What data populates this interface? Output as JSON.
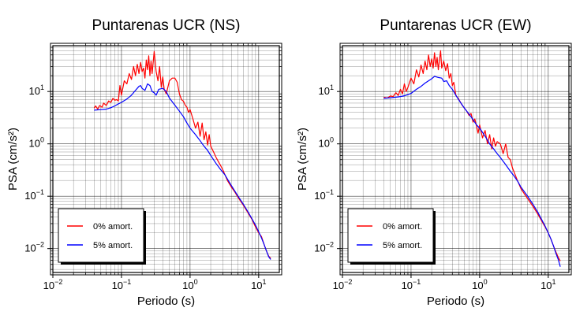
{
  "figure": {
    "background": "#ffffff"
  },
  "chart_data": [
    {
      "type": "line",
      "title": "Puntarenas UCR (NS)",
      "xlabel": "Periodo (s)",
      "ylabel": "PSA (cm/s²)",
      "xscale": "log",
      "yscale": "log",
      "xlim": [
        0.01,
        20
      ],
      "ylim": [
        0.0035,
        75
      ],
      "grid": true,
      "legend_position": "lower-left",
      "x_ticks": [
        {
          "value": 0.01,
          "base": "10",
          "exp": "−2"
        },
        {
          "value": 0.1,
          "base": "10",
          "exp": "−1"
        },
        {
          "value": 1,
          "base": "10",
          "exp": "0"
        },
        {
          "value": 10,
          "base": "10",
          "exp": "1"
        }
      ],
      "y_ticks": [
        {
          "value": 0.01,
          "base": "10",
          "exp": "−2"
        },
        {
          "value": 0.1,
          "base": "10",
          "exp": "−1"
        },
        {
          "value": 1,
          "base": "10",
          "exp": "0"
        },
        {
          "value": 10,
          "base": "10",
          "exp": "1"
        }
      ],
      "series": [
        {
          "name": "0% amort.",
          "color": "#ff0000",
          "points": [
            [
              0.04,
              4.8
            ],
            [
              0.042,
              5.3
            ],
            [
              0.045,
              4.6
            ],
            [
              0.048,
              5.4
            ],
            [
              0.052,
              5.0
            ],
            [
              0.055,
              6.0
            ],
            [
              0.06,
              5.4
            ],
            [
              0.065,
              6.6
            ],
            [
              0.07,
              6.2
            ],
            [
              0.075,
              7.4
            ],
            [
              0.08,
              6.8
            ],
            [
              0.085,
              7.0
            ],
            [
              0.09,
              6.6
            ],
            [
              0.095,
              13
            ],
            [
              0.1,
              8.5
            ],
            [
              0.11,
              16
            ],
            [
              0.12,
              14
            ],
            [
              0.13,
              22
            ],
            [
              0.14,
              17
            ],
            [
              0.15,
              30
            ],
            [
              0.16,
              20
            ],
            [
              0.17,
              33
            ],
            [
              0.18,
              22
            ],
            [
              0.19,
              36
            ],
            [
              0.2,
              24
            ],
            [
              0.21,
              28
            ],
            [
              0.22,
              18
            ],
            [
              0.23,
              40
            ],
            [
              0.24,
              26
            ],
            [
              0.25,
              48
            ],
            [
              0.26,
              20
            ],
            [
              0.27,
              38
            ],
            [
              0.28,
              22
            ],
            [
              0.3,
              58
            ],
            [
              0.32,
              24
            ],
            [
              0.34,
              16
            ],
            [
              0.36,
              30
            ],
            [
              0.38,
              12
            ],
            [
              0.4,
              19
            ],
            [
              0.42,
              11
            ],
            [
              0.45,
              9
            ],
            [
              0.5,
              16
            ],
            [
              0.55,
              18
            ],
            [
              0.6,
              18
            ],
            [
              0.65,
              15
            ],
            [
              0.7,
              9
            ],
            [
              0.75,
              7
            ],
            [
              0.8,
              6.5
            ],
            [
              0.85,
              5.5
            ],
            [
              0.9,
              5.0
            ],
            [
              0.95,
              4.0
            ],
            [
              1.0,
              4.5
            ],
            [
              1.1,
              3.0
            ],
            [
              1.2,
              2.0
            ],
            [
              1.3,
              2.6
            ],
            [
              1.4,
              1.4
            ],
            [
              1.5,
              2.5
            ],
            [
              1.6,
              1.2
            ],
            [
              1.7,
              1.7
            ],
            [
              1.8,
              0.95
            ],
            [
              1.9,
              1.5
            ],
            [
              2.0,
              0.9
            ],
            [
              2.2,
              0.7
            ],
            [
              2.4,
              0.55
            ],
            [
              2.6,
              0.45
            ],
            [
              2.8,
              0.38
            ],
            [
              3.0,
              0.32
            ],
            [
              3.5,
              0.2
            ],
            [
              4.0,
              0.15
            ],
            [
              4.5,
              0.12
            ],
            [
              5.0,
              0.095
            ],
            [
              6.0,
              0.067
            ],
            [
              7.0,
              0.048
            ],
            [
              8.0,
              0.036
            ],
            [
              9.0,
              0.026
            ],
            [
              10.0,
              0.02
            ],
            [
              11.0,
              0.017
            ],
            [
              12.0,
              0.012
            ],
            [
              13.0,
              0.009
            ],
            [
              14.0,
              0.0072
            ],
            [
              15.0,
              0.0065
            ]
          ]
        },
        {
          "name": "5% amort.",
          "color": "#0000ff",
          "points": [
            [
              0.04,
              4.4
            ],
            [
              0.05,
              4.5
            ],
            [
              0.06,
              4.6
            ],
            [
              0.07,
              4.9
            ],
            [
              0.08,
              5.3
            ],
            [
              0.09,
              5.8
            ],
            [
              0.1,
              6.2
            ],
            [
              0.12,
              7.2
            ],
            [
              0.14,
              8.5
            ],
            [
              0.16,
              10.5
            ],
            [
              0.18,
              12.5
            ],
            [
              0.19,
              13
            ],
            [
              0.2,
              11.5
            ],
            [
              0.22,
              10.5
            ],
            [
              0.24,
              14
            ],
            [
              0.26,
              13
            ],
            [
              0.28,
              10
            ],
            [
              0.3,
              9.5
            ],
            [
              0.32,
              8.5
            ],
            [
              0.35,
              11
            ],
            [
              0.4,
              11.5
            ],
            [
              0.45,
              10
            ],
            [
              0.5,
              7.5
            ],
            [
              0.6,
              5.5
            ],
            [
              0.7,
              4.2
            ],
            [
              0.8,
              3.3
            ],
            [
              0.9,
              2.5
            ],
            [
              1.0,
              2.0
            ],
            [
              1.2,
              1.5
            ],
            [
              1.4,
              1.15
            ],
            [
              1.6,
              0.9
            ],
            [
              1.8,
              0.75
            ],
            [
              2.0,
              0.6
            ],
            [
              2.4,
              0.42
            ],
            [
              2.8,
              0.32
            ],
            [
              3.2,
              0.26
            ],
            [
              3.6,
              0.2
            ],
            [
              4.0,
              0.16
            ],
            [
              5.0,
              0.1
            ],
            [
              6.0,
              0.07
            ],
            [
              7.0,
              0.05
            ],
            [
              8.0,
              0.037
            ],
            [
              9.0,
              0.028
            ],
            [
              10.0,
              0.021
            ],
            [
              11.0,
              0.016
            ],
            [
              12.0,
              0.012
            ],
            [
              13.0,
              0.009
            ],
            [
              14.0,
              0.007
            ],
            [
              15.0,
              0.0062
            ]
          ]
        }
      ]
    },
    {
      "type": "line",
      "title": "Puntarenas UCR (EW)",
      "xlabel": "Periodo (s)",
      "ylabel": "PSA (cm/s²)",
      "xscale": "log",
      "yscale": "log",
      "xlim": [
        0.01,
        20
      ],
      "ylim": [
        0.0035,
        75
      ],
      "grid": true,
      "legend_position": "lower-left",
      "x_ticks": [
        {
          "value": 0.01,
          "base": "10",
          "exp": "−2"
        },
        {
          "value": 0.1,
          "base": "10",
          "exp": "−1"
        },
        {
          "value": 1,
          "base": "10",
          "exp": "0"
        },
        {
          "value": 10,
          "base": "10",
          "exp": "1"
        }
      ],
      "y_ticks": [
        {
          "value": 0.01,
          "base": "10",
          "exp": "−2"
        },
        {
          "value": 0.1,
          "base": "10",
          "exp": "−1"
        },
        {
          "value": 1,
          "base": "10",
          "exp": "0"
        },
        {
          "value": 10,
          "base": "10",
          "exp": "1"
        }
      ],
      "series": [
        {
          "name": "0% amort.",
          "color": "#ff0000",
          "points": [
            [
              0.04,
              7.8
            ],
            [
              0.045,
              7.5
            ],
            [
              0.05,
              8.2
            ],
            [
              0.055,
              8.0
            ],
            [
              0.06,
              9.5
            ],
            [
              0.065,
              8.4
            ],
            [
              0.07,
              11
            ],
            [
              0.075,
              9.0
            ],
            [
              0.08,
              14
            ],
            [
              0.085,
              10
            ],
            [
              0.09,
              12
            ],
            [
              0.1,
              18
            ],
            [
              0.11,
              14
            ],
            [
              0.12,
              26
            ],
            [
              0.13,
              19
            ],
            [
              0.14,
              32
            ],
            [
              0.15,
              22
            ],
            [
              0.16,
              38
            ],
            [
              0.17,
              26
            ],
            [
              0.18,
              50
            ],
            [
              0.19,
              30
            ],
            [
              0.2,
              42
            ],
            [
              0.21,
              28
            ],
            [
              0.22,
              55
            ],
            [
              0.23,
              30
            ],
            [
              0.24,
              45
            ],
            [
              0.25,
              26
            ],
            [
              0.27,
              60
            ],
            [
              0.28,
              28
            ],
            [
              0.3,
              38
            ],
            [
              0.32,
              25
            ],
            [
              0.34,
              34
            ],
            [
              0.36,
              18
            ],
            [
              0.38,
              22
            ],
            [
              0.4,
              13
            ],
            [
              0.42,
              15
            ],
            [
              0.45,
              8.5
            ],
            [
              0.5,
              7.0
            ],
            [
              0.55,
              5.6
            ],
            [
              0.6,
              4.8
            ],
            [
              0.65,
              4.2
            ],
            [
              0.7,
              3.5
            ],
            [
              0.75,
              3.8
            ],
            [
              0.8,
              2.6
            ],
            [
              0.85,
              3.0
            ],
            [
              0.9,
              2.2
            ],
            [
              0.95,
              1.6
            ],
            [
              1.0,
              2.3
            ],
            [
              1.1,
              1.3
            ],
            [
              1.2,
              1.8
            ],
            [
              1.3,
              1.0
            ],
            [
              1.4,
              1.5
            ],
            [
              1.5,
              0.8
            ],
            [
              1.6,
              1.3
            ],
            [
              1.7,
              0.9
            ],
            [
              1.8,
              1.1
            ],
            [
              2.0,
              1.0
            ],
            [
              2.2,
              0.65
            ],
            [
              2.4,
              1.0
            ],
            [
              2.6,
              0.55
            ],
            [
              2.8,
              0.5
            ],
            [
              3.0,
              0.35
            ],
            [
              3.5,
              0.21
            ],
            [
              4.0,
              0.14
            ],
            [
              4.5,
              0.11
            ],
            [
              5.0,
              0.09
            ],
            [
              6.0,
              0.064
            ],
            [
              7.0,
              0.046
            ],
            [
              8.0,
              0.034
            ],
            [
              9.0,
              0.026
            ],
            [
              10.0,
              0.02
            ],
            [
              11.0,
              0.015
            ],
            [
              12.0,
              0.011
            ],
            [
              13.0,
              0.0085
            ],
            [
              14.0,
              0.0068
            ],
            [
              15.0,
              0.0058
            ]
          ]
        },
        {
          "name": "5% amort.",
          "color": "#0000ff",
          "points": [
            [
              0.04,
              7.4
            ],
            [
              0.05,
              7.6
            ],
            [
              0.06,
              7.8
            ],
            [
              0.07,
              8.0
            ],
            [
              0.08,
              8.3
            ],
            [
              0.09,
              8.7
            ],
            [
              0.1,
              9.2
            ],
            [
              0.12,
              11
            ],
            [
              0.14,
              12.5
            ],
            [
              0.16,
              14.5
            ],
            [
              0.18,
              16
            ],
            [
              0.2,
              17.5
            ],
            [
              0.22,
              19.5
            ],
            [
              0.25,
              18.5
            ],
            [
              0.28,
              18
            ],
            [
              0.3,
              15.5
            ],
            [
              0.33,
              16
            ],
            [
              0.36,
              13
            ],
            [
              0.4,
              11
            ],
            [
              0.45,
              8.5
            ],
            [
              0.5,
              6.8
            ],
            [
              0.6,
              4.8
            ],
            [
              0.7,
              3.7
            ],
            [
              0.8,
              2.9
            ],
            [
              0.9,
              2.3
            ],
            [
              1.0,
              2.0
            ],
            [
              1.2,
              1.4
            ],
            [
              1.4,
              1.0
            ],
            [
              1.6,
              0.8
            ],
            [
              1.8,
              0.65
            ],
            [
              2.0,
              0.55
            ],
            [
              2.4,
              0.4
            ],
            [
              2.8,
              0.3
            ],
            [
              3.2,
              0.24
            ],
            [
              3.6,
              0.19
            ],
            [
              4.0,
              0.15
            ],
            [
              5.0,
              0.1
            ],
            [
              6.0,
              0.07
            ],
            [
              7.0,
              0.05
            ],
            [
              8.0,
              0.036
            ],
            [
              9.0,
              0.027
            ],
            [
              10.0,
              0.02
            ],
            [
              11.0,
              0.015
            ],
            [
              12.0,
              0.011
            ],
            [
              13.0,
              0.008
            ],
            [
              14.0,
              0.0062
            ],
            [
              15.0,
              0.0045
            ]
          ]
        }
      ]
    }
  ]
}
